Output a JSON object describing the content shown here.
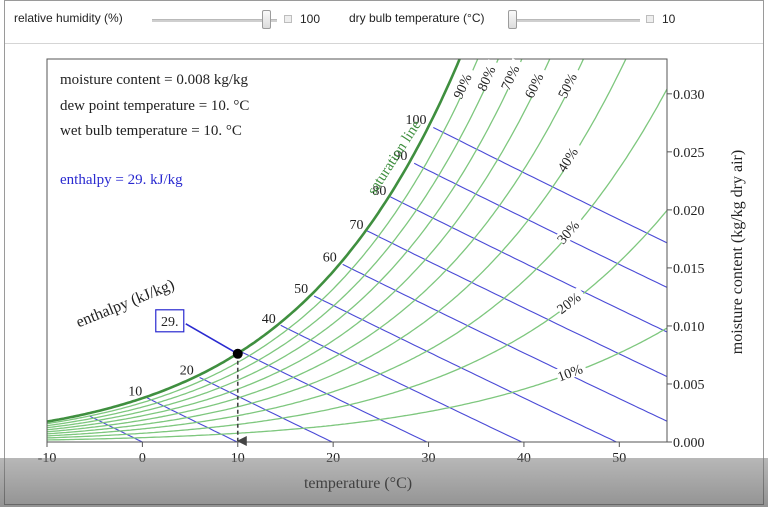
{
  "controls": {
    "humidity": {
      "label": "relative humidity (%)",
      "value": "100",
      "fraction": 0.91
    },
    "drybulb": {
      "label": "dry bulb temperature (°C)",
      "value": "10",
      "fraction": 0.0
    }
  },
  "readout": {
    "moisture": "moisture content = 0.008 kg/kg",
    "dewpoint": "dew point temperature = 10. °C",
    "wetbulb": "wet bulb temperature = 10. °C",
    "enthalpy": "enthalpy = 29. kJ/kg"
  },
  "chart_data": {
    "type": "line",
    "xlabel": "temperature (°C)",
    "ylabel": "moisture content (kg/kg dry air)",
    "xlim": [
      -10,
      55
    ],
    "ylim": [
      0,
      0.033
    ],
    "x_ticks": [
      "-10",
      "0",
      "10",
      "20",
      "30",
      "40",
      "50"
    ],
    "y_ticks": [
      "0.000",
      "0.005",
      "0.010",
      "0.015",
      "0.020",
      "0.025",
      "0.030"
    ],
    "rh_levels": [
      10,
      20,
      30,
      40,
      50,
      60,
      70,
      80,
      90,
      100
    ],
    "rh_labels": [
      "10%",
      "20%",
      "30%",
      "40%",
      "50%",
      "60%",
      "70%",
      "80%",
      "90%"
    ],
    "saturation_label": "saturation line",
    "enthalpy_axis_label": "enthalpy (kJ/kg)",
    "enthalpy_levels": [
      10,
      20,
      40,
      50,
      60,
      70,
      80,
      90,
      100
    ],
    "enthalpy_labels": [
      "10",
      "20",
      "40",
      "50",
      "60",
      "70",
      "80",
      "90",
      "100"
    ],
    "state_point": {
      "x": 10,
      "y": 0.0076,
      "enthalpy_label": "29."
    },
    "grid": false,
    "colors": {
      "rh_curve": "#7ec77e",
      "saturation": "#3f8f3f",
      "enthalpy_line": "#4a4ad6",
      "text_blue": "#2a2ad0"
    }
  }
}
